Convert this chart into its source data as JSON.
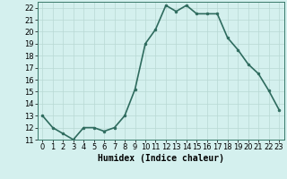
{
  "x": [
    0,
    1,
    2,
    3,
    4,
    5,
    6,
    7,
    8,
    9,
    10,
    11,
    12,
    13,
    14,
    15,
    16,
    17,
    18,
    19,
    20,
    21,
    22,
    23
  ],
  "y": [
    13,
    12,
    11.5,
    11,
    12,
    12,
    11.7,
    12,
    13,
    15.2,
    19,
    20.2,
    22.2,
    21.7,
    22.2,
    21.5,
    21.5,
    21.5,
    19.5,
    18.5,
    17.3,
    16.5,
    15.1,
    13.5
  ],
  "line_color": "#2e6b5e",
  "marker": "o",
  "marker_size": 2,
  "bg_color": "#d4f0ee",
  "grid_color": "#b8d8d4",
  "xlabel": "Humidex (Indice chaleur)",
  "xlabel_fontsize": 7,
  "tick_fontsize": 6,
  "ylim": [
    11,
    22.5
  ],
  "xlim": [
    -0.5,
    23.5
  ],
  "yticks": [
    11,
    12,
    13,
    14,
    15,
    16,
    17,
    18,
    19,
    20,
    21,
    22
  ],
  "xticks": [
    0,
    1,
    2,
    3,
    4,
    5,
    6,
    7,
    8,
    9,
    10,
    11,
    12,
    13,
    14,
    15,
    16,
    17,
    18,
    19,
    20,
    21,
    22,
    23
  ],
  "linewidth": 1.2,
  "marker_color": "#2e6b5e",
  "spine_color": "#3a7a6a"
}
